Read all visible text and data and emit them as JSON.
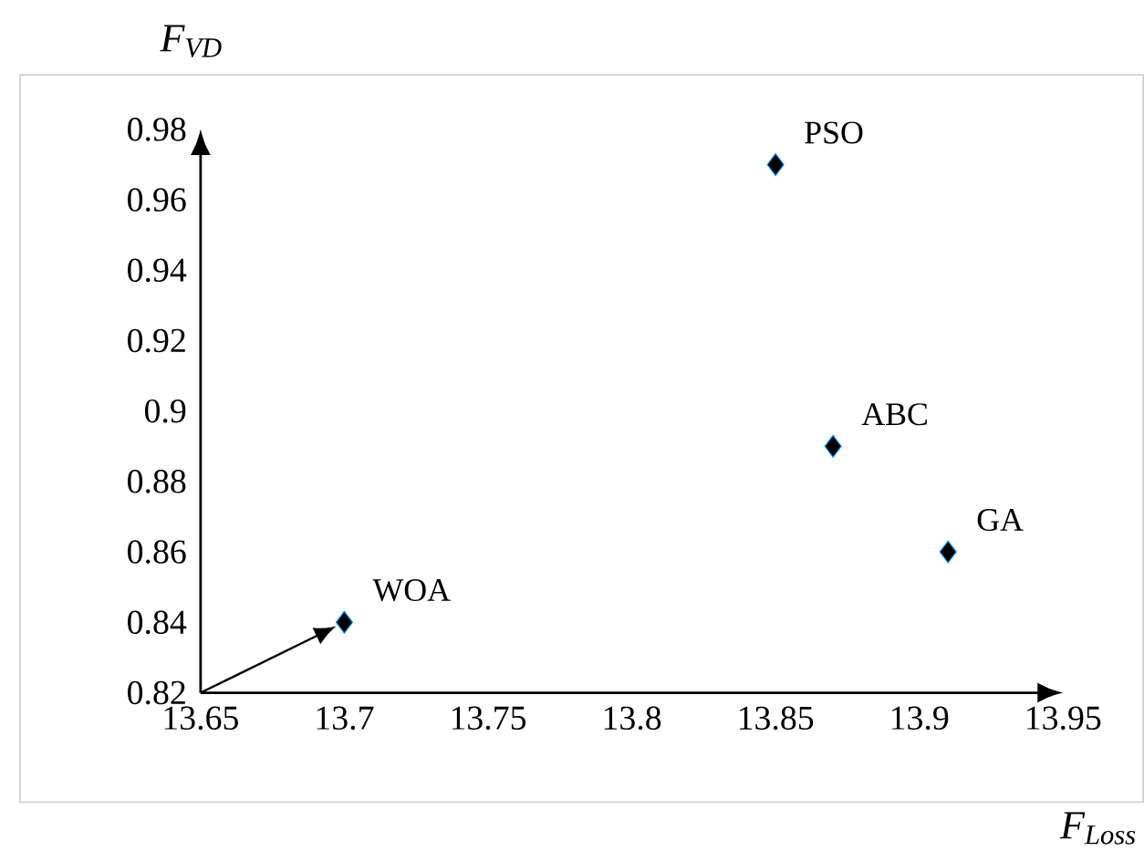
{
  "chart_data": {
    "type": "scatter",
    "xlabel": "F$_{Loss}$",
    "ylabel": "F$_{VD}$",
    "x": [
      13.7,
      13.85,
      13.87,
      13.91
    ],
    "series": [
      {
        "color": "#000000",
        "values": [
          0.84,
          0.97,
          0.89,
          0.86
        ]
      }
    ],
    "marker": "diamond",
    "grid": false,
    "legend": false,
    "xlim": [
      13.65,
      13.95
    ],
    "xticks": [
      13.65,
      13.7,
      13.75,
      13.8,
      13.85,
      13.9,
      13.95
    ],
    "ylim": [
      0.82,
      0.98
    ],
    "yticks": [
      0.82,
      0.84,
      0.86,
      0.88,
      0.9,
      0.92,
      0.94,
      0.96,
      0.98
    ],
    "annotations": [
      {
        "text": "WOA",
        "x": 13.7,
        "y": 0.84
      },
      {
        "text": "PSO",
        "x": 13.85,
        "y": 0.97
      },
      {
        "text": "ABC",
        "x": 13.87,
        "y": 0.89
      },
      {
        "text": "GA",
        "x": 13.91,
        "y": 0.86
      }
    ]
  }
}
